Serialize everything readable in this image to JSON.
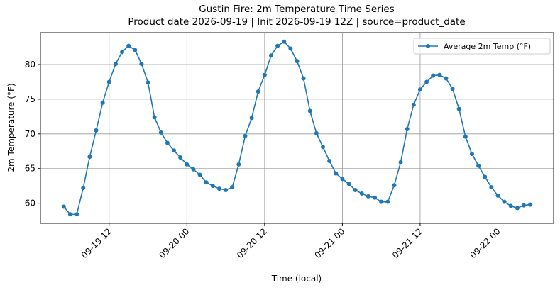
{
  "chart_data": {
    "type": "line",
    "title": [
      "Gustin Fire: 2m Temperature Time Series",
      "Product date 2026-09-19 | Init 2026-09-19 12Z | source=product_date"
    ],
    "xlabel": "Time (local)",
    "ylabel": "2m Temperature (°F)",
    "x": [
      "09-19 05",
      "09-19 06",
      "09-19 07",
      "09-19 08",
      "09-19 09",
      "09-19 10",
      "09-19 11",
      "09-19 12",
      "09-19 13",
      "09-19 14",
      "09-19 15",
      "09-19 16",
      "09-19 17",
      "09-19 18",
      "09-19 19",
      "09-19 20",
      "09-19 21",
      "09-19 22",
      "09-19 23",
      "09-20 00",
      "09-20 01",
      "09-20 02",
      "09-20 03",
      "09-20 04",
      "09-20 05",
      "09-20 06",
      "09-20 07",
      "09-20 08",
      "09-20 09",
      "09-20 10",
      "09-20 11",
      "09-20 12",
      "09-20 13",
      "09-20 14",
      "09-20 15",
      "09-20 16",
      "09-20 17",
      "09-20 18",
      "09-20 19",
      "09-20 20",
      "09-20 21",
      "09-20 22",
      "09-20 23",
      "09-21 00",
      "09-21 01",
      "09-21 02",
      "09-21 03",
      "09-21 04",
      "09-21 05",
      "09-21 06",
      "09-21 07",
      "09-21 08",
      "09-21 09",
      "09-21 10",
      "09-21 11",
      "09-21 12",
      "09-21 13",
      "09-21 14",
      "09-21 15",
      "09-21 16",
      "09-21 17",
      "09-21 18",
      "09-21 19",
      "09-21 20",
      "09-21 21",
      "09-21 22",
      "09-21 23",
      "09-22 00",
      "09-22 01",
      "09-22 02",
      "09-22 03",
      "09-22 04",
      "09-22 05"
    ],
    "series": [
      {
        "name": "Average 2m Temp (°F)",
        "color": "#1f77b4",
        "values": [
          59.5,
          58.4,
          58.4,
          62.2,
          66.7,
          70.5,
          74.5,
          77.5,
          80.1,
          81.8,
          82.7,
          82.1,
          80.1,
          77.4,
          72.4,
          70.2,
          68.7,
          67.6,
          66.6,
          65.6,
          64.9,
          64.1,
          63.0,
          62.5,
          62.1,
          61.9,
          62.3,
          65.6,
          69.7,
          72.3,
          76.1,
          78.5,
          81.3,
          82.7,
          83.3,
          82.3,
          80.5,
          78.0,
          73.3,
          70.1,
          68.1,
          66.1,
          64.3,
          63.5,
          62.8,
          61.9,
          61.4,
          61.0,
          60.8,
          60.2,
          60.2,
          62.6,
          65.9,
          70.7,
          74.2,
          76.4,
          77.5,
          78.4,
          78.5,
          78.0,
          76.5,
          73.6,
          69.6,
          67.1,
          65.4,
          63.8,
          62.3,
          61.1,
          60.2,
          59.6,
          59.3,
          59.7,
          59.8
        ]
      }
    ],
    "xticks": [
      "09-19 12",
      "09-20 00",
      "09-20 12",
      "09-21 00",
      "09-21 12",
      "09-22 00"
    ],
    "ylim": [
      57.1,
      84.6
    ],
    "yticks": [
      60,
      65,
      70,
      75,
      80
    ],
    "grid": true,
    "legend": "upper right"
  }
}
